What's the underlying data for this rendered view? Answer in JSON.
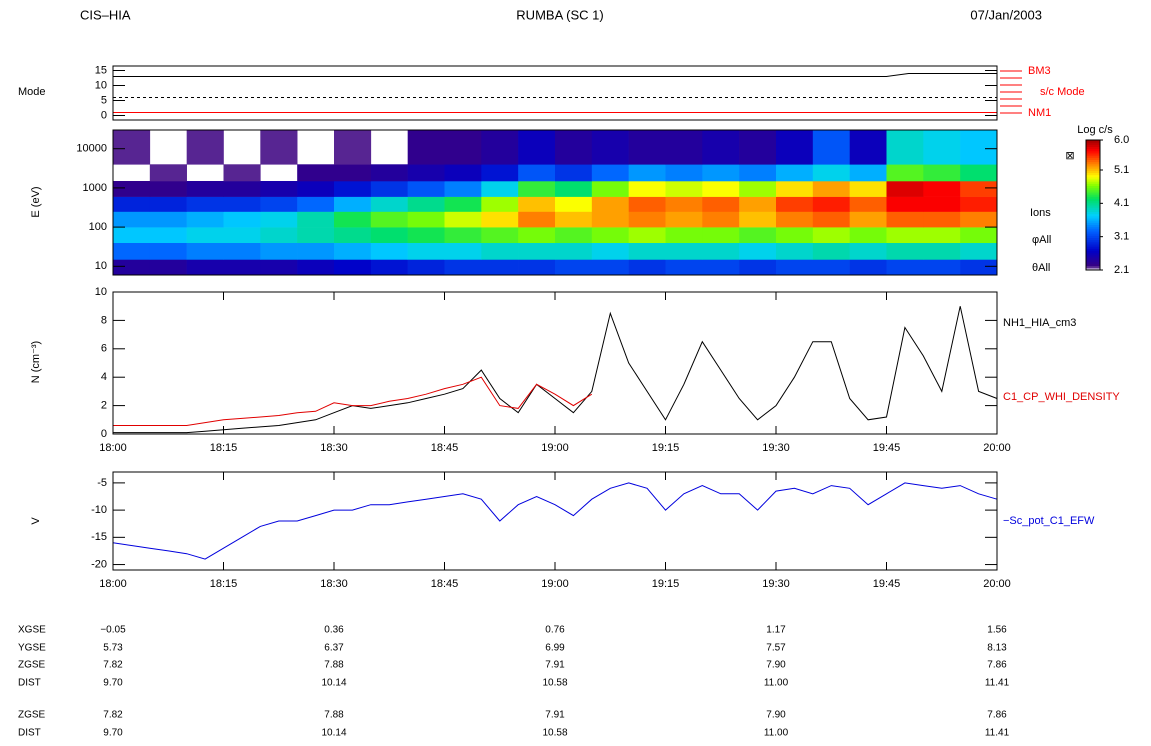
{
  "header": {
    "left": "CIS–HIA",
    "center": "RUMBA (SC 1)",
    "right": "07/Jan/2003"
  },
  "chart_data": [
    {
      "type": "line",
      "ylabel": "Mode",
      "xlim": [
        18,
        20
      ],
      "ylim": [
        -1.5,
        16.5
      ],
      "yticks": [
        0,
        5,
        10,
        15
      ],
      "x": [
        18,
        19.75,
        19.8,
        20
      ],
      "series": [
        {
          "color": "#000000",
          "style": "solid",
          "values": [
            13,
            13,
            14,
            14
          ]
        },
        {
          "color": "#000000",
          "style": "dashed",
          "values": [
            6,
            6,
            6,
            6
          ]
        },
        {
          "color": "#ff0000",
          "style": "solid",
          "values": [
            1,
            1,
            1,
            1
          ]
        }
      ],
      "annotations": [
        "BM3",
        "s/c Mode",
        "NM1"
      ]
    },
    {
      "type": "heatmap",
      "ylabel": "E (eV)",
      "log_y": true,
      "xlim": [
        18,
        20
      ],
      "ylim": [
        6,
        30000
      ],
      "yticks": [
        10,
        100,
        1000,
        10000
      ],
      "x": [
        18,
        18.0833,
        18.1667,
        18.25,
        18.3333,
        18.4167,
        18.5,
        18.5833,
        18.6667,
        18.75,
        18.8333,
        18.9167,
        19,
        19.0833,
        19.1667,
        19.25,
        19.3333,
        19.4167,
        19.5,
        19.5833,
        19.6667,
        19.75,
        19.8333,
        19.9167,
        20
      ],
      "y": [
        6,
        15,
        40,
        100,
        250,
        600,
        1500,
        4000,
        30000
      ],
      "z": [
        [
          2.4,
          2.4,
          2.5,
          2.5,
          2.5,
          2.6,
          2.7,
          2.8,
          2.9,
          3.0,
          3.0,
          3.0,
          3.1,
          3.1,
          3.0,
          3.1,
          3.1,
          3.0,
          3.1,
          3.1,
          3.0,
          3.1,
          3.1,
          3.0
        ],
        [
          3.3,
          3.3,
          3.4,
          3.4,
          3.5,
          3.5,
          3.6,
          3.7,
          3.8,
          3.8,
          3.9,
          3.9,
          3.9,
          3.8,
          3.9,
          3.9,
          3.9,
          3.8,
          3.9,
          4.0,
          3.9,
          4.0,
          4.0,
          3.9
        ],
        [
          3.7,
          3.7,
          3.8,
          3.8,
          3.9,
          4.0,
          4.1,
          4.2,
          4.3,
          4.4,
          4.5,
          4.6,
          4.5,
          4.6,
          4.7,
          4.6,
          4.6,
          4.5,
          4.6,
          4.7,
          4.6,
          4.7,
          4.7,
          4.6
        ],
        [
          3.5,
          3.5,
          3.6,
          3.7,
          3.8,
          4.0,
          4.3,
          4.5,
          4.6,
          4.8,
          5.0,
          5.3,
          5.1,
          5.2,
          5.3,
          5.2,
          5.3,
          5.1,
          5.3,
          5.4,
          5.2,
          5.4,
          5.4,
          5.3
        ],
        [
          2.9,
          2.9,
          3.0,
          3.0,
          3.1,
          3.3,
          3.6,
          3.9,
          4.1,
          4.3,
          4.7,
          5.1,
          4.9,
          5.2,
          5.4,
          5.3,
          5.4,
          5.2,
          5.5,
          5.6,
          5.4,
          5.7,
          5.7,
          5.6
        ],
        [
          2.3,
          2.3,
          2.4,
          2.4,
          2.5,
          2.6,
          2.8,
          3.0,
          3.2,
          3.4,
          3.8,
          4.4,
          4.2,
          4.6,
          4.9,
          4.8,
          4.9,
          4.7,
          5.0,
          5.2,
          5.0,
          5.8,
          5.7,
          5.5
        ],
        [
          null,
          2.2,
          null,
          2.2,
          null,
          2.3,
          2.3,
          2.4,
          2.5,
          2.6,
          2.8,
          3.2,
          3.0,
          3.3,
          3.5,
          3.4,
          3.5,
          3.4,
          3.6,
          3.8,
          3.6,
          4.5,
          4.4,
          4.2
        ],
        [
          2.2,
          null,
          2.2,
          null,
          2.2,
          null,
          2.2,
          null,
          2.3,
          2.3,
          2.4,
          2.6,
          2.4,
          2.5,
          2.4,
          2.4,
          2.5,
          2.4,
          2.6,
          3.2,
          2.6,
          3.9,
          3.8,
          3.7
        ]
      ],
      "zlim": [
        2.1,
        6.0
      ],
      "zticks": [
        2.1,
        3.1,
        4.1,
        5.1,
        {
          "value": 6,
          "label": "6.0"
        }
      ],
      "colorbar_label": "Log c/s",
      "annotations": [
        "Ions",
        "φAll",
        "θAll"
      ]
    },
    {
      "type": "line",
      "ylabel": "N (cm⁻³)",
      "xlim": [
        18,
        20
      ],
      "ylim": [
        0,
        10
      ],
      "yticks": [
        0,
        2,
        4,
        6,
        8,
        10
      ],
      "xticks": [
        {
          "value": 18,
          "label": "18:00"
        },
        {
          "value": 18.25,
          "label": "18:15"
        },
        {
          "value": 18.5,
          "label": "18:30"
        },
        {
          "value": 18.75,
          "label": "18:45"
        },
        {
          "value": 19,
          "label": "19:00"
        },
        {
          "value": 19.25,
          "label": "19:15"
        },
        {
          "value": 19.5,
          "label": "19:30"
        },
        {
          "value": 19.75,
          "label": "19:45"
        },
        {
          "value": 20,
          "label": "20:00"
        }
      ],
      "x": [
        18,
        18.0417,
        18.0833,
        18.125,
        18.1667,
        18.2083,
        18.25,
        18.2917,
        18.3333,
        18.375,
        18.4167,
        18.4583,
        18.5,
        18.5417,
        18.5833,
        18.625,
        18.6667,
        18.7083,
        18.75,
        18.7917,
        18.8333,
        18.875,
        18.9167,
        18.9583,
        19,
        19.0417,
        19.0833,
        19.125,
        19.1667,
        19.2083,
        19.25,
        19.2917,
        19.3333,
        19.375,
        19.4167,
        19.4583,
        19.5,
        19.5417,
        19.5833,
        19.625,
        19.6667,
        19.7083,
        19.75,
        19.7917,
        19.8333,
        19.875,
        19.9167,
        19.9583,
        20
      ],
      "series": [
        {
          "name": "NH1_HIA_cm3",
          "color": "#000000",
          "style": "solid",
          "values": [
            0.1,
            0.1,
            0.1,
            0.1,
            0.1,
            0.2,
            0.3,
            0.4,
            0.5,
            0.6,
            0.8,
            1.0,
            1.5,
            2.0,
            1.8,
            2.0,
            2.2,
            2.5,
            2.8,
            3.2,
            4.5,
            2.5,
            1.5,
            3.5,
            2.5,
            1.5,
            3.0,
            8.5,
            5.0,
            3.0,
            1.0,
            3.5,
            6.5,
            4.5,
            2.5,
            1.0,
            2.0,
            4.0,
            6.5,
            6.5,
            2.5,
            1.0,
            1.2,
            7.5,
            5.5,
            3.0,
            9.0,
            3.0,
            2.5
          ]
        },
        {
          "name": "C1_CP_WHI_DENSITY",
          "color": "#e00000",
          "style": "solid",
          "values": [
            0.6,
            0.6,
            0.6,
            0.6,
            0.6,
            0.8,
            1.0,
            1.1,
            1.2,
            1.3,
            1.5,
            1.6,
            2.2,
            2.0,
            2.0,
            2.3,
            2.5,
            2.8,
            3.2,
            3.5,
            4.0,
            2.0,
            1.8,
            3.5,
            2.8,
            2.0,
            2.8,
            null,
            null,
            null,
            null,
            null,
            null,
            null,
            null,
            null,
            null,
            null,
            null,
            null,
            null,
            null,
            null,
            null,
            null,
            null,
            null,
            null,
            null
          ]
        }
      ]
    },
    {
      "type": "line",
      "ylabel": "V",
      "xlim": [
        18,
        20
      ],
      "ylim": [
        -21,
        -3
      ],
      "yticks": [
        -20,
        -15,
        -10,
        -5
      ],
      "xticks": [
        {
          "value": 18,
          "label": "18:00"
        },
        {
          "value": 18.25,
          "label": "18:15"
        },
        {
          "value": 18.5,
          "label": "18:30"
        },
        {
          "value": 18.75,
          "label": "18:45"
        },
        {
          "value": 19,
          "label": "19:00"
        },
        {
          "value": 19.25,
          "label": "19:15"
        },
        {
          "value": 19.5,
          "label": "19:30"
        },
        {
          "value": 19.75,
          "label": "19:45"
        },
        {
          "value": 20,
          "label": "20:00"
        }
      ],
      "x": [
        18,
        18.0417,
        18.0833,
        18.125,
        18.1667,
        18.2083,
        18.25,
        18.2917,
        18.3333,
        18.375,
        18.4167,
        18.4583,
        18.5,
        18.5417,
        18.5833,
        18.625,
        18.6667,
        18.7083,
        18.75,
        18.7917,
        18.8333,
        18.875,
        18.9167,
        18.9583,
        19,
        19.0417,
        19.0833,
        19.125,
        19.1667,
        19.2083,
        19.25,
        19.2917,
        19.3333,
        19.375,
        19.4167,
        19.4583,
        19.5,
        19.5417,
        19.5833,
        19.625,
        19.6667,
        19.7083,
        19.75,
        19.7917,
        19.8333,
        19.875,
        19.9167,
        19.9583,
        20
      ],
      "series": [
        {
          "name": "−Sc_pot_C1_EFW",
          "color": "#0000dd",
          "style": "solid",
          "values": [
            -16,
            -16.5,
            -17,
            -17.5,
            -18,
            -19,
            -17,
            -15,
            -13,
            -12,
            -12,
            -11,
            -10,
            -10,
            -9,
            -9,
            -8.5,
            -8,
            -7.5,
            -7,
            -8,
            -12,
            -9,
            -7.5,
            -9,
            -11,
            -8,
            -6,
            -5,
            -6,
            -10,
            -7,
            -5.5,
            -7,
            -7,
            -10,
            -6.5,
            -6,
            -7,
            -5.5,
            -6,
            -9,
            -7,
            -5,
            -5.5,
            -6,
            -5.5,
            -7,
            -8
          ]
        }
      ]
    }
  ],
  "ephemeris": {
    "rows": [
      [
        "XGSE",
        "−0.05",
        "0.36",
        "0.76",
        "1.17",
        "1.56"
      ],
      [
        "YGSE",
        "5.73",
        "6.37",
        "6.99",
        "7.57",
        "8.13"
      ],
      [
        "ZGSE",
        "7.82",
        "7.88",
        "7.91",
        "7.90",
        "7.86"
      ],
      [
        "DIST",
        "9.70",
        "10.14",
        "10.58",
        "11.00",
        "11.41"
      ],
      [
        "ZGSE",
        "7.82",
        "7.88",
        "7.91",
        "7.90",
        "7.86"
      ],
      [
        "DIST",
        "9.70",
        "10.14",
        "10.58",
        "11.00",
        "11.41"
      ]
    ]
  }
}
